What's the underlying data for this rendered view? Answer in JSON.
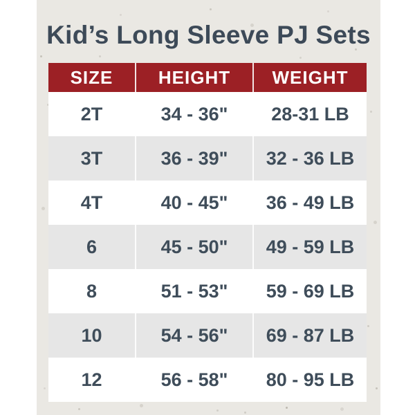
{
  "title": "Kid’s Long Sleeve PJ Sets",
  "chart_data": {
    "type": "table",
    "title": "Kid’s Long Sleeve PJ Sets",
    "columns": [
      "SIZE",
      "HEIGHT",
      "WEIGHT"
    ],
    "rows": [
      [
        "2T",
        "34 - 36\"",
        "28-31 LB"
      ],
      [
        "3T",
        "36 - 39\"",
        "32 - 36 LB"
      ],
      [
        "4T",
        "40 - 45\"",
        "36 - 49 LB"
      ],
      [
        "6",
        "45 - 50\"",
        "49 - 59 LB"
      ],
      [
        "8",
        "51 - 53\"",
        "59 - 69 LB"
      ],
      [
        "10",
        "54 - 56\"",
        "69 - 87 LB"
      ],
      [
        "12",
        "56 - 58\"",
        "80 - 95 LB"
      ]
    ]
  },
  "colors": {
    "header_bg": "#9c2025",
    "header_text": "#ffffff",
    "title_text": "#3d4a58",
    "body_text": "#3f4d5a",
    "row_bg": "#ffffff",
    "row_alt_bg": "#e6e6e6",
    "paper_bg": "#eae8e3",
    "page_bg": "#ffffff"
  }
}
